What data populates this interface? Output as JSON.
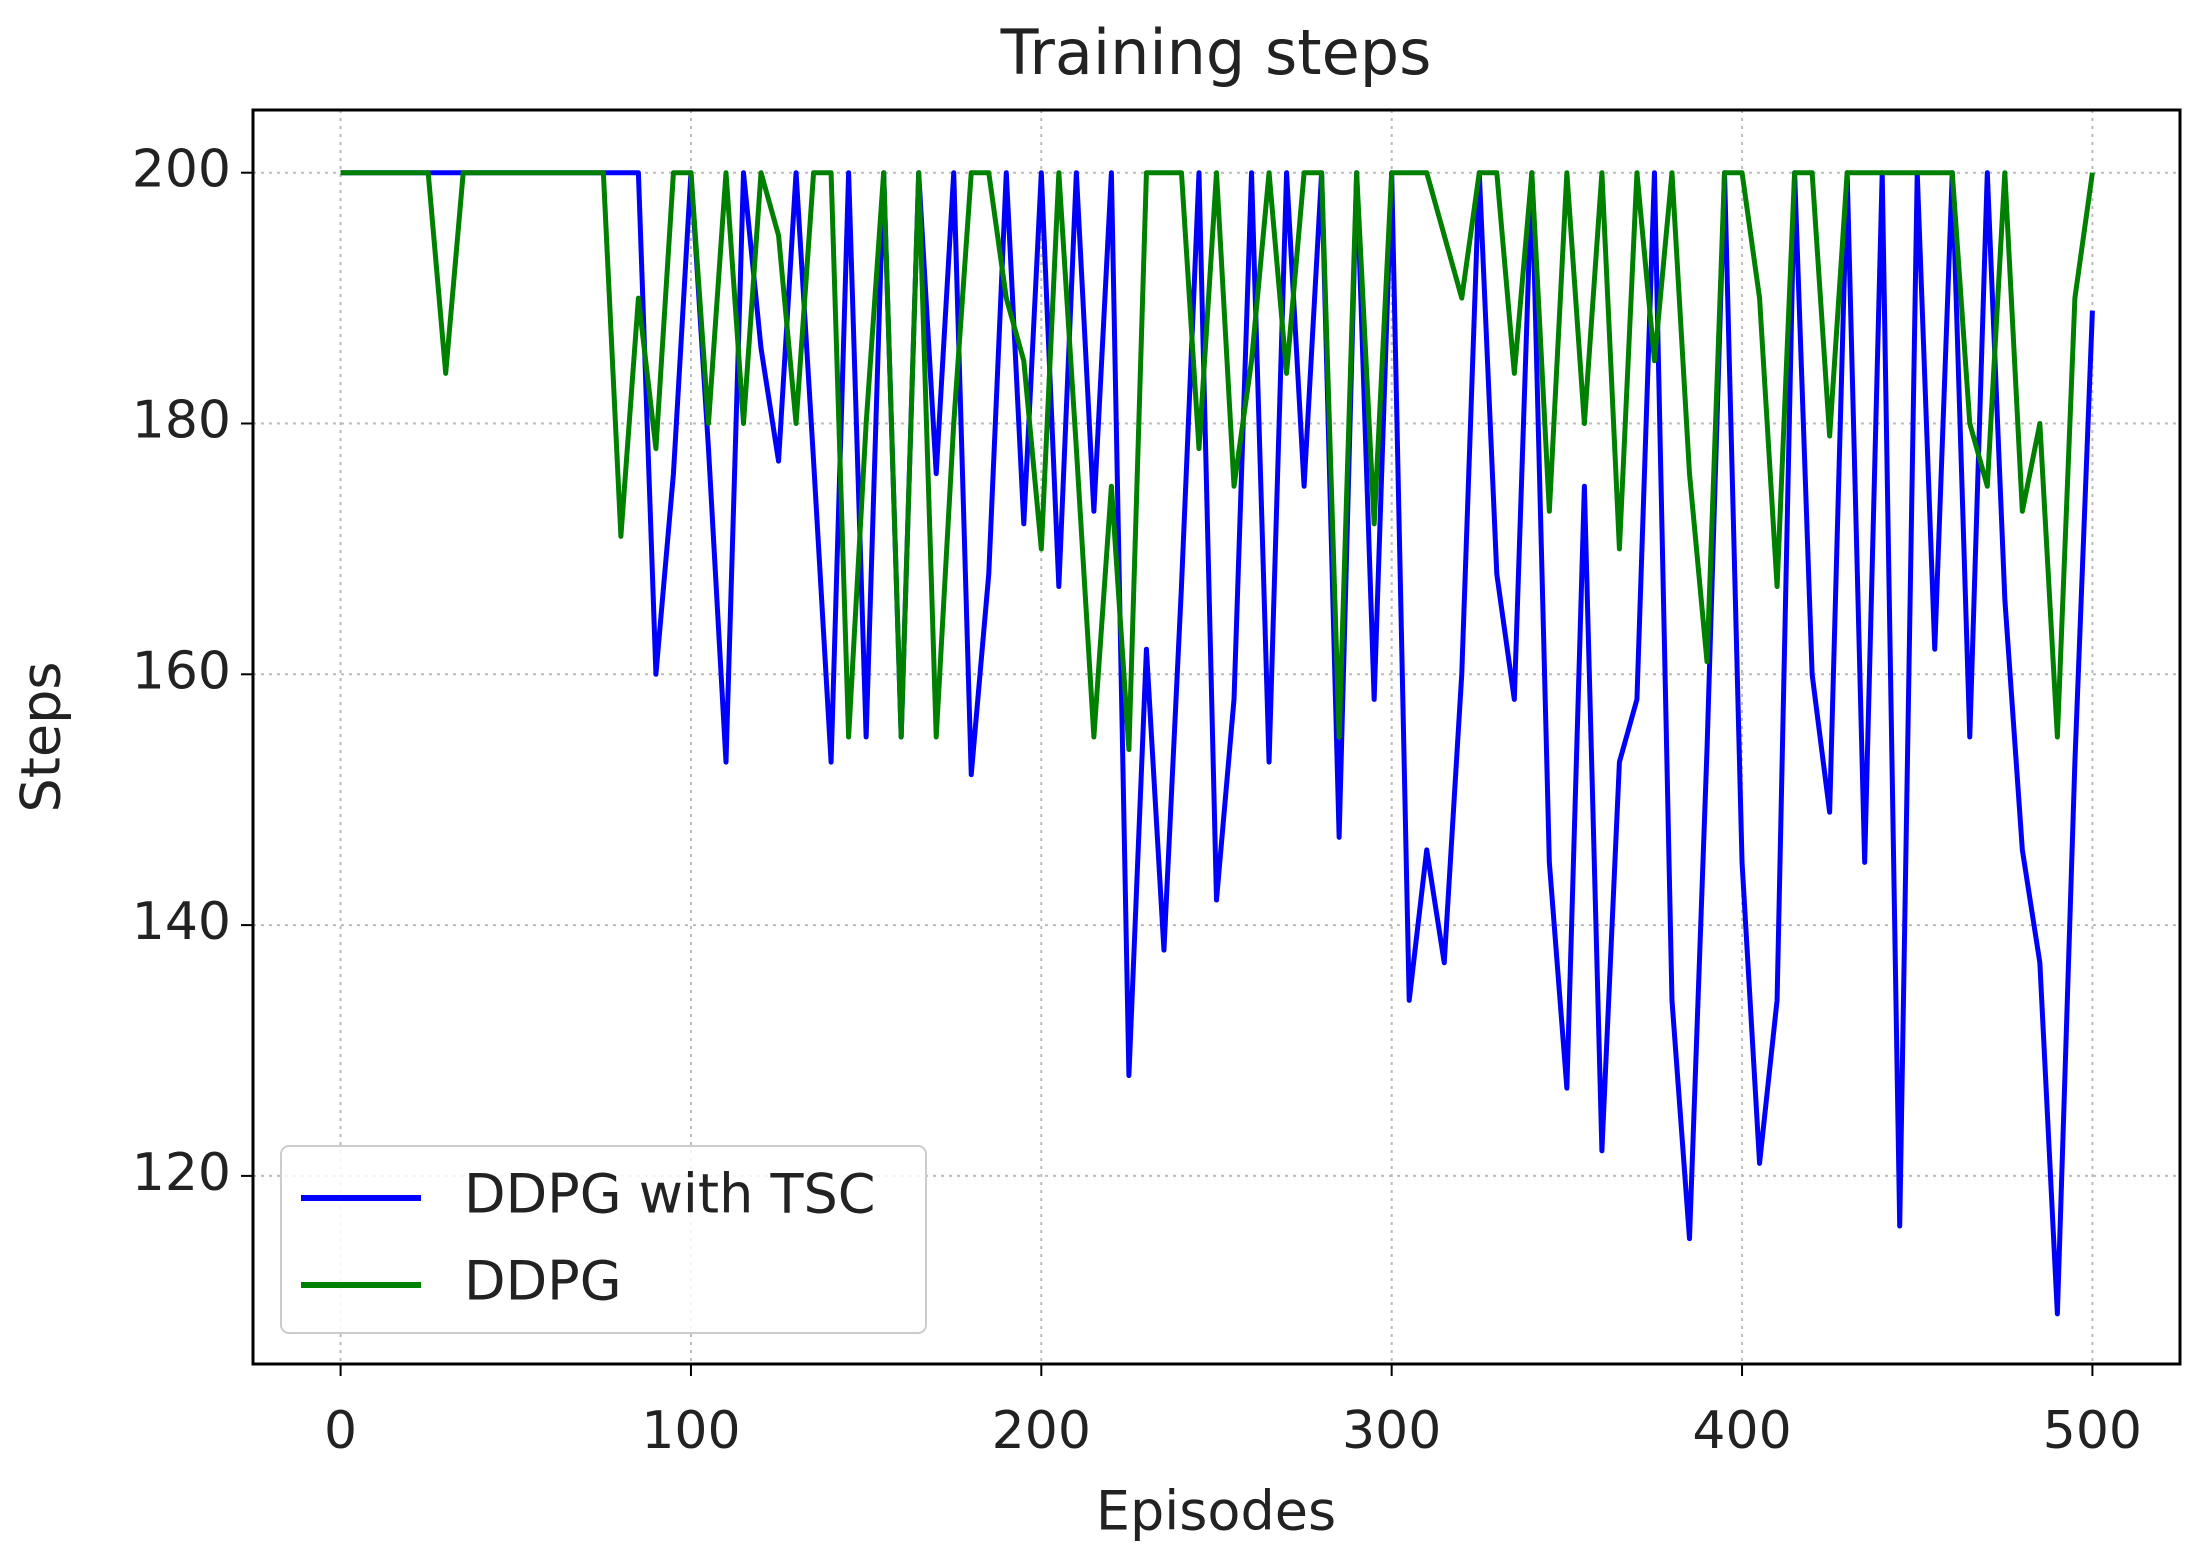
{
  "chart_data": {
    "type": "line",
    "title": "Training steps",
    "x_label": "Episodes",
    "y_label": "Steps",
    "x": [
      0,
      5,
      10,
      15,
      20,
      25,
      30,
      35,
      40,
      45,
      50,
      55,
      60,
      65,
      70,
      75,
      80,
      85,
      90,
      95,
      100,
      105,
      110,
      115,
      120,
      125,
      130,
      135,
      140,
      145,
      150,
      155,
      160,
      165,
      170,
      175,
      180,
      185,
      190,
      195,
      200,
      205,
      210,
      215,
      220,
      225,
      230,
      235,
      240,
      245,
      250,
      255,
      260,
      265,
      270,
      275,
      280,
      285,
      290,
      295,
      300,
      305,
      310,
      315,
      320,
      325,
      330,
      335,
      340,
      345,
      350,
      355,
      360,
      365,
      370,
      375,
      380,
      385,
      390,
      395,
      400,
      405,
      410,
      415,
      420,
      425,
      430,
      435,
      440,
      445,
      450,
      455,
      460,
      465,
      470,
      475,
      480,
      485,
      490,
      495,
      500
    ],
    "series": [
      {
        "name": "DDPG with TSC",
        "color": "#0000ff",
        "values": [
          200,
          200,
          200,
          200,
          200,
          200,
          200,
          200,
          200,
          200,
          200,
          200,
          200,
          200,
          200,
          200,
          200,
          200,
          160,
          176,
          200,
          178,
          153,
          200,
          186,
          177,
          200,
          177,
          153,
          200,
          155,
          200,
          155,
          200,
          176,
          200,
          152,
          168,
          200,
          172,
          200,
          167,
          200,
          173,
          200,
          128,
          162,
          138,
          167,
          200,
          142,
          158,
          200,
          153,
          200,
          175,
          200,
          147,
          200,
          158,
          200,
          134,
          146,
          137,
          160,
          200,
          168,
          158,
          200,
          145,
          127,
          175,
          122,
          153,
          158,
          200,
          134,
          115,
          154,
          200,
          145,
          121,
          134,
          200,
          160,
          149,
          200,
          145,
          200,
          116,
          200,
          162,
          200,
          155,
          200,
          166,
          146,
          137,
          109,
          153,
          189
        ]
      },
      {
        "name": "DDPG",
        "color": "#008000",
        "values": [
          200,
          200,
          200,
          200,
          200,
          200,
          184,
          200,
          200,
          200,
          200,
          200,
          200,
          200,
          200,
          200,
          171,
          190,
          178,
          200,
          200,
          180,
          200,
          180,
          200,
          195,
          180,
          200,
          200,
          155,
          180,
          200,
          155,
          200,
          155,
          180,
          200,
          200,
          190,
          185,
          170,
          200,
          178,
          155,
          175,
          154,
          200,
          200,
          200,
          178,
          200,
          175,
          185,
          200,
          184,
          200,
          200,
          155,
          200,
          172,
          200,
          200,
          200,
          195,
          190,
          200,
          200,
          184,
          200,
          173,
          200,
          180,
          200,
          170,
          200,
          185,
          200,
          176,
          161,
          200,
          200,
          190,
          167,
          200,
          200,
          179,
          200,
          200,
          200,
          200,
          200,
          200,
          200,
          180,
          175,
          200,
          173,
          180,
          155,
          190,
          200
        ]
      }
    ],
    "xlim": [
      -25,
      525
    ],
    "ylim": [
      105,
      205
    ],
    "xticks": [
      0,
      100,
      200,
      300,
      400,
      500
    ],
    "yticks": [
      120,
      140,
      160,
      180,
      200
    ],
    "grid": true,
    "legend": "lower left"
  }
}
